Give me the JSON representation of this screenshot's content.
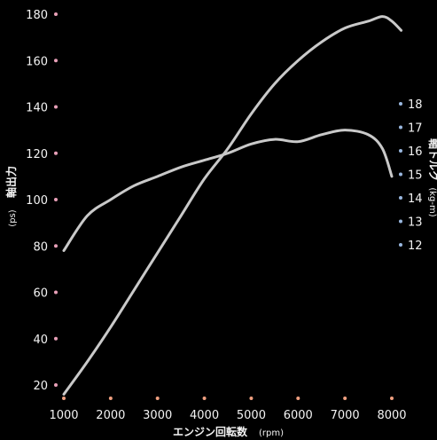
{
  "chart_data": {
    "type": "line",
    "xlabel": "エンジン回転数",
    "xlabel_unit": "(rpm)",
    "ylabel_left": "軸出力",
    "ylabel_left_unit": "(ps)",
    "ylabel_right": "軸トルク",
    "ylabel_right_unit": "(kg-m)",
    "x_ticks": [
      "1000",
      "2000",
      "3000",
      "4000",
      "5000",
      "6000",
      "7000",
      "8000"
    ],
    "y_left_ticks": [
      "20",
      "40",
      "60",
      "80",
      "100",
      "120",
      "140",
      "160",
      "180"
    ],
    "y_right_ticks": [
      "12",
      "13",
      "14",
      "15",
      "16",
      "17",
      "18"
    ],
    "xlim": [
      1000,
      8000
    ],
    "ylim_left": [
      20,
      180
    ],
    "ylim_right": [
      12,
      18
    ],
    "grid": false,
    "colors": {
      "background": "#000000",
      "curve": "#c9c9c9",
      "tick_dot_left": "#e8a0b8",
      "tick_dot_x": "#f0a080",
      "tick_dot_right": "#9ab8e0"
    },
    "series": [
      {
        "axis": "left",
        "x": [
          1000,
          1500,
          2000,
          2500,
          3000,
          3500,
          4000,
          4500,
          5000,
          5500,
          6000,
          6500,
          7000,
          7500,
          7800,
          8000,
          8200
        ],
        "values": [
          16,
          30,
          45,
          61,
          77,
          93,
          109,
          122,
          137,
          150,
          160,
          168,
          174,
          177,
          179,
          177,
          173
        ]
      },
      {
        "axis": "left",
        "x": [
          1000,
          1500,
          2000,
          2500,
          3000,
          3500,
          4000,
          4500,
          5000,
          5500,
          6000,
          6500,
          7000,
          7500,
          7800,
          8000
        ],
        "values": [
          78,
          93,
          100,
          106,
          110,
          114,
          117,
          120,
          124,
          126,
          125,
          128,
          130,
          128,
          122,
          110
        ]
      }
    ]
  }
}
